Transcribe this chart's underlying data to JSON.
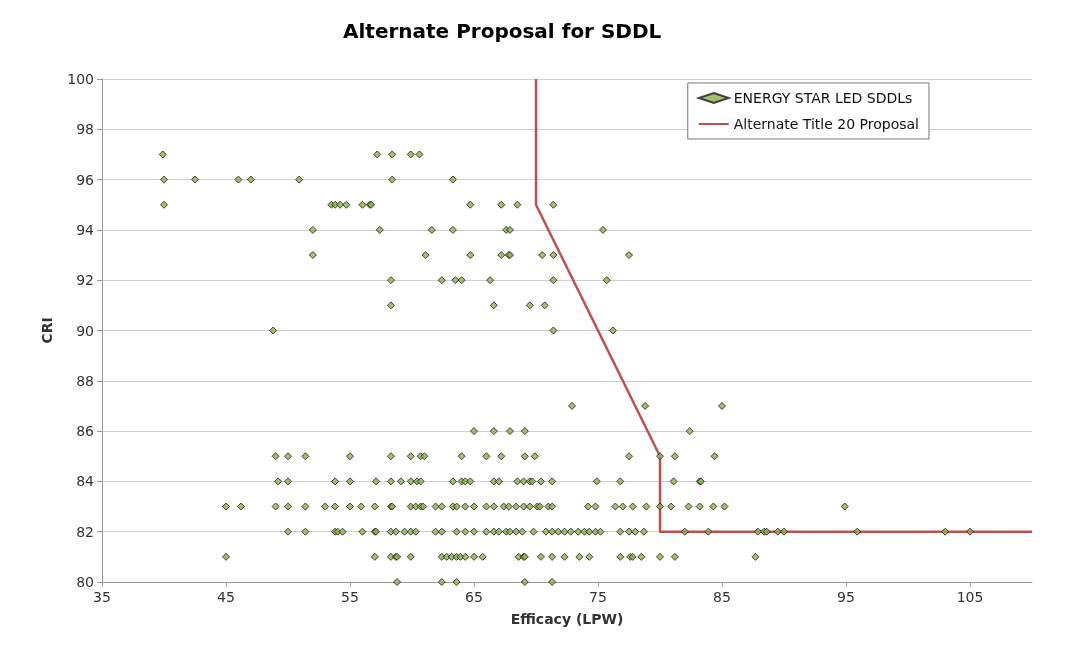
{
  "chart_data": {
    "type": "scatter",
    "title": "Alternate Proposal for SDDL",
    "xlabel": "Efficacy (LPW)",
    "ylabel": "CRI",
    "xlim": [
      35,
      110
    ],
    "xticks": [
      35,
      45,
      55,
      65,
      75,
      85,
      95,
      105
    ],
    "ylim": [
      80,
      100
    ],
    "yticks": [
      80,
      82,
      84,
      86,
      88,
      90,
      92,
      94,
      96,
      98,
      100
    ],
    "grid": "y",
    "legend": "top right",
    "marker": "diamond",
    "series": [
      {
        "name": "ENERGY STAR LED SDDLs",
        "color": "#8db04a",
        "x": [
          39.9,
          57.2,
          58.4,
          59.9,
          60.6,
          40.0,
          42.5,
          46.0,
          47.0,
          50.9,
          58.4,
          63.3,
          40.0,
          53.5,
          53.8,
          54.2,
          54.7,
          56.0,
          56.6,
          56.7,
          64.7,
          67.2,
          68.5,
          71.4,
          52.0,
          57.4,
          61.6,
          63.3,
          67.6,
          67.9,
          75.4,
          52.0,
          61.1,
          64.7,
          67.2,
          67.8,
          67.9,
          70.5,
          71.4,
          77.5,
          58.3,
          62.4,
          63.5,
          64.0,
          66.3,
          71.4,
          75.7,
          58.3,
          66.6,
          69.5,
          70.7,
          48.8,
          71.4,
          76.2,
          72.9,
          78.8,
          85.0,
          65.0,
          66.6,
          67.9,
          69.1,
          82.4,
          49.0,
          50.0,
          51.4,
          55.0,
          58.3,
          59.9,
          60.7,
          61.0,
          64.0,
          66.0,
          67.2,
          69.1,
          69.9,
          77.5,
          80.0,
          81.2,
          84.4,
          49.2,
          50.0,
          53.8,
          55.0,
          57.1,
          58.3,
          59.1,
          59.9,
          60.4,
          60.7,
          63.3,
          64.0,
          64.3,
          64.7,
          66.6,
          67.0,
          68.5,
          69.0,
          69.5,
          69.7,
          70.4,
          71.3,
          74.9,
          76.8,
          81.1,
          83.2,
          83.3,
          45.0,
          46.2,
          49.0,
          50.0,
          51.4,
          53.0,
          53.8,
          55.0,
          55.9,
          57.0,
          58.3,
          58.4,
          59.9,
          60.3,
          60.7,
          60.9,
          61.9,
          62.4,
          63.3,
          63.6,
          64.3,
          65.0,
          66.0,
          66.6,
          67.4,
          67.8,
          68.4,
          69.0,
          69.5,
          70.1,
          70.3,
          71.0,
          71.3,
          74.2,
          74.8,
          76.4,
          77.0,
          77.8,
          78.9,
          80.0,
          80.9,
          82.3,
          83.2,
          84.3,
          85.2,
          94.9,
          50.0,
          51.4,
          53.8,
          54.0,
          54.4,
          56.0,
          57.0,
          57.1,
          58.3,
          58.7,
          59.4,
          59.9,
          60.3,
          61.9,
          62.4,
          63.6,
          64.3,
          65.0,
          66.0,
          66.6,
          67.0,
          67.6,
          67.9,
          68.4,
          68.9,
          69.8,
          70.8,
          71.3,
          71.8,
          72.3,
          72.8,
          73.4,
          73.9,
          74.3,
          74.8,
          75.2,
          76.8,
          77.5,
          78.0,
          78.7,
          82.0,
          83.9,
          87.9,
          88.4,
          88.6,
          89.5,
          90.0,
          95.9,
          103.0,
          105.0,
          45.0,
          57.0,
          58.3,
          58.7,
          58.8,
          59.9,
          62.4,
          62.8,
          63.2,
          63.6,
          63.9,
          64.3,
          65.0,
          65.7,
          68.6,
          69.0,
          69.1,
          70.4,
          71.3,
          72.3,
          73.5,
          74.3,
          76.8,
          77.6,
          77.8,
          78.5,
          80.0,
          81.2,
          87.7,
          58.8,
          62.4,
          63.6,
          69.1,
          71.3
        ],
        "values": [
          97,
          97,
          97,
          97,
          97,
          96,
          96,
          96,
          96,
          96,
          96,
          96,
          95,
          95,
          95,
          95,
          95,
          95,
          95,
          95,
          95,
          95,
          95,
          95,
          94,
          94,
          94,
          94,
          94,
          94,
          94,
          93,
          93,
          93,
          93,
          93,
          93,
          93,
          93,
          93,
          92,
          92,
          92,
          92,
          92,
          92,
          92,
          91,
          91,
          91,
          91,
          90,
          90,
          90,
          87,
          87,
          87,
          86,
          86,
          86,
          86,
          86,
          85,
          85,
          85,
          85,
          85,
          85,
          85,
          85,
          85,
          85,
          85,
          85,
          85,
          85,
          85,
          85,
          85,
          84,
          84,
          84,
          84,
          84,
          84,
          84,
          84,
          84,
          84,
          84,
          84,
          84,
          84,
          84,
          84,
          84,
          84,
          84,
          84,
          84,
          84,
          84,
          84,
          84,
          84,
          84,
          83,
          83,
          83,
          83,
          83,
          83,
          83,
          83,
          83,
          83,
          83,
          83,
          83,
          83,
          83,
          83,
          83,
          83,
          83,
          83,
          83,
          83,
          83,
          83,
          83,
          83,
          83,
          83,
          83,
          83,
          83,
          83,
          83,
          83,
          83,
          83,
          83,
          83,
          83,
          83,
          83,
          83,
          83,
          83,
          83,
          83,
          82,
          82,
          82,
          82,
          82,
          82,
          82,
          82,
          82,
          82,
          82,
          82,
          82,
          82,
          82,
          82,
          82,
          82,
          82,
          82,
          82,
          82,
          82,
          82,
          82,
          82,
          82,
          82,
          82,
          82,
          82,
          82,
          82,
          82,
          82,
          82,
          82,
          82,
          82,
          82,
          82,
          82,
          82,
          82,
          82,
          82,
          82,
          82,
          82,
          82,
          81,
          81,
          81,
          81,
          81,
          81,
          81,
          81,
          81,
          81,
          81,
          81,
          81,
          81,
          81,
          81,
          81,
          81,
          81,
          81,
          81,
          81,
          81,
          81,
          81,
          81,
          81,
          81,
          81,
          80,
          80,
          80,
          80,
          80
        ]
      },
      {
        "name": "Alternate Title 20 Proposal",
        "type": "line",
        "color": "#c0504d",
        "marker": "none",
        "line_style": "solid",
        "x": [
          70,
          70,
          80,
          80,
          110
        ],
        "values": [
          100,
          95,
          85,
          82,
          82
        ]
      }
    ]
  }
}
